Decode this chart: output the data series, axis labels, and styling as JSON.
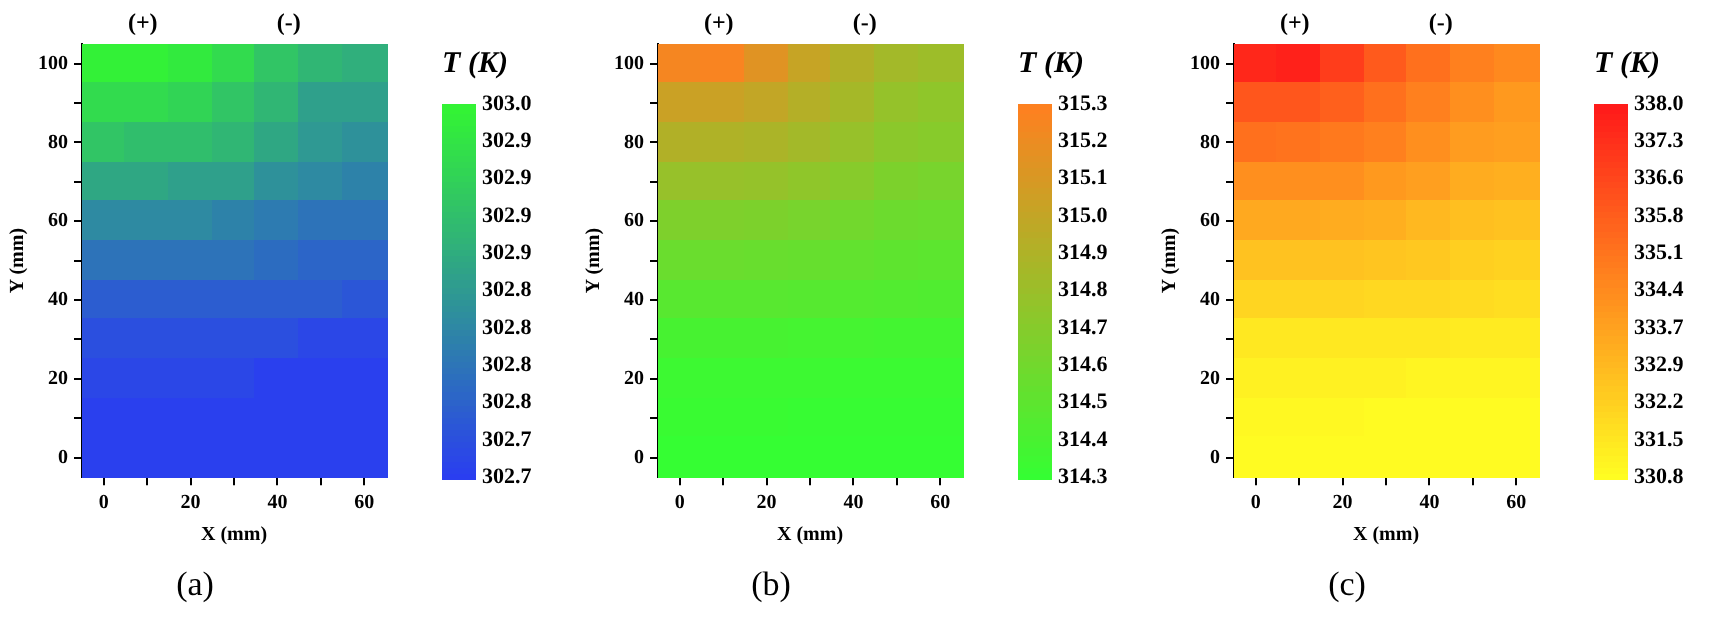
{
  "chart_data": [
    {
      "type": "heatmap",
      "title": "(a)",
      "xlabel": "X (mm)",
      "ylabel": "Y (mm)",
      "clabel": "T (K)",
      "categories": [
        "0",
        null,
        "20",
        null,
        "40",
        null,
        "60"
      ],
      "y_categories": [
        "100",
        null,
        "80",
        null,
        "60",
        null,
        "40",
        null,
        "20",
        null,
        "0"
      ],
      "colors": [
        "#2a3cf2",
        "#33f533"
      ],
      "clim": [
        302.705,
        302.955
      ],
      "cticks": [
        {
          "value": 302.705,
          "label": "302.7"
        },
        {
          "value": 302.73,
          "label": "302.7"
        },
        {
          "value": 302.755,
          "label": "302.8"
        },
        {
          "value": 302.78,
          "label": "302.8"
        },
        {
          "value": 302.805,
          "label": "302.8"
        },
        {
          "value": 302.83,
          "label": "302.8"
        },
        {
          "value": 302.855,
          "label": "302.9"
        },
        {
          "value": 302.88,
          "label": "302.9"
        },
        {
          "value": 302.905,
          "label": "302.9"
        },
        {
          "value": 302.93,
          "label": "302.9"
        },
        {
          "value": 302.955,
          "label": "303.0"
        }
      ],
      "cells": [
        [
          302.95,
          302.95,
          302.94,
          302.92,
          302.89,
          302.87,
          302.86
        ],
        [
          302.92,
          302.92,
          302.91,
          302.89,
          302.87,
          302.84,
          302.84
        ],
        [
          302.89,
          302.88,
          302.88,
          302.87,
          302.85,
          302.83,
          302.82
        ],
        [
          302.85,
          302.85,
          302.84,
          302.84,
          302.82,
          302.81,
          302.8
        ],
        [
          302.81,
          302.81,
          302.81,
          302.8,
          302.79,
          302.78,
          302.78
        ],
        [
          302.78,
          302.78,
          302.78,
          302.78,
          302.77,
          302.76,
          302.76
        ],
        [
          302.75,
          302.75,
          302.75,
          302.75,
          302.75,
          302.75,
          302.74
        ],
        [
          302.73,
          302.73,
          302.73,
          302.73,
          302.73,
          302.72,
          302.72
        ],
        [
          302.72,
          302.72,
          302.72,
          302.72,
          302.71,
          302.71,
          302.71
        ],
        [
          302.71,
          302.71,
          302.71,
          302.71,
          302.71,
          302.71,
          302.71
        ],
        [
          302.71,
          302.71,
          302.71,
          302.71,
          302.71,
          302.71,
          302.71
        ]
      ],
      "annotations": [
        "(+)",
        "(-)"
      ]
    },
    {
      "type": "heatmap",
      "title": "(b)",
      "xlabel": "X (mm)",
      "ylabel": "Y (mm)",
      "clabel": "T (K)",
      "categories": [
        "0",
        null,
        "20",
        null,
        "40",
        null,
        "60"
      ],
      "y_categories": [
        "100",
        null,
        "80",
        null,
        "60",
        null,
        "40",
        null,
        "20",
        null,
        "0"
      ],
      "colors": [
        "#33ff33",
        "#ff8020"
      ],
      "clim": [
        314.3,
        315.3
      ],
      "cticks": [
        314.3,
        314.4,
        314.5,
        314.6,
        314.7,
        314.8,
        314.9,
        {
          "value": 315.0,
          "label": "315.0"
        },
        315.1,
        315.2,
        315.3
      ],
      "cells": [
        [
          315.25,
          315.27,
          315.15,
          315.02,
          314.92,
          314.85,
          314.82
        ],
        [
          315.04,
          315.04,
          315.0,
          314.93,
          314.86,
          314.78,
          314.75
        ],
        [
          314.92,
          314.91,
          314.89,
          314.85,
          314.79,
          314.73,
          314.71
        ],
        [
          314.79,
          314.79,
          314.78,
          314.75,
          314.71,
          314.66,
          314.64
        ],
        [
          314.67,
          314.67,
          314.66,
          314.64,
          314.61,
          314.58,
          314.57
        ],
        [
          314.57,
          314.57,
          314.56,
          314.55,
          314.53,
          314.51,
          314.5
        ],
        [
          314.48,
          314.48,
          314.48,
          314.47,
          314.46,
          314.45,
          314.44
        ],
        [
          314.4,
          314.4,
          314.4,
          314.39,
          314.39,
          314.38,
          314.38
        ],
        [
          314.35,
          314.35,
          314.35,
          314.35,
          314.34,
          314.34,
          314.34
        ],
        [
          314.33,
          314.33,
          314.33,
          314.32,
          314.32,
          314.32,
          314.32
        ],
        [
          314.31,
          314.31,
          314.31,
          314.31,
          314.31,
          314.31,
          314.31
        ]
      ],
      "annotations": [
        "(+)",
        "(-)"
      ]
    },
    {
      "type": "heatmap",
      "title": "(c)",
      "xlabel": "X (mm)",
      "ylabel": "Y (mm)",
      "clabel": "T (K)",
      "categories": [
        "0",
        null,
        "20",
        null,
        "40",
        null,
        "60"
      ],
      "y_categories": [
        "100",
        null,
        "80",
        null,
        "60",
        null,
        "40",
        null,
        "20",
        null,
        "0"
      ],
      "colors": [
        "#ffff22",
        "#ff1a1a"
      ],
      "clim": [
        330.77,
        338.01
      ],
      "cticks": [
        {
          "value": 330.77,
          "label": "330.8"
        },
        {
          "value": 331.494,
          "label": "331.5"
        },
        {
          "value": 332.218,
          "label": "332.2"
        },
        {
          "value": 332.942,
          "label": "332.9"
        },
        {
          "value": 333.666,
          "label": "333.7"
        },
        {
          "value": 334.39,
          "label": "334.4"
        },
        {
          "value": 335.114,
          "label": "335.1"
        },
        {
          "value": 335.838,
          "label": "335.8"
        },
        {
          "value": 336.562,
          "label": "336.6"
        },
        {
          "value": 337.286,
          "label": "337.3"
        },
        {
          "value": 338.01,
          "label": "338.0"
        }
      ],
      "cells": [
        [
          337.6,
          337.8,
          336.9,
          336.0,
          335.3,
          334.8,
          334.5
        ],
        [
          336.1,
          336.1,
          335.8,
          335.3,
          334.8,
          334.3,
          334.0
        ],
        [
          335.3,
          335.2,
          335.0,
          334.8,
          334.3,
          333.9,
          333.8
        ],
        [
          334.3,
          334.3,
          334.3,
          334.0,
          333.8,
          333.4,
          333.3
        ],
        [
          333.5,
          333.5,
          333.4,
          333.3,
          333.0,
          332.8,
          332.7
        ],
        [
          332.7,
          332.7,
          332.7,
          332.6,
          332.5,
          332.3,
          332.2
        ],
        [
          332.1,
          332.1,
          332.1,
          332.0,
          332.0,
          331.9,
          331.8
        ],
        [
          331.5,
          331.5,
          331.5,
          331.5,
          331.5,
          331.4,
          331.4
        ],
        [
          331.2,
          331.2,
          331.2,
          331.2,
          331.1,
          331.1,
          331.1
        ],
        [
          331.0,
          331.0,
          331.0,
          330.9,
          330.9,
          330.9,
          330.9
        ],
        [
          330.9,
          330.9,
          330.9,
          330.9,
          330.9,
          330.9,
          330.9
        ]
      ],
      "annotations": [
        "(+)",
        "(-)"
      ]
    }
  ]
}
